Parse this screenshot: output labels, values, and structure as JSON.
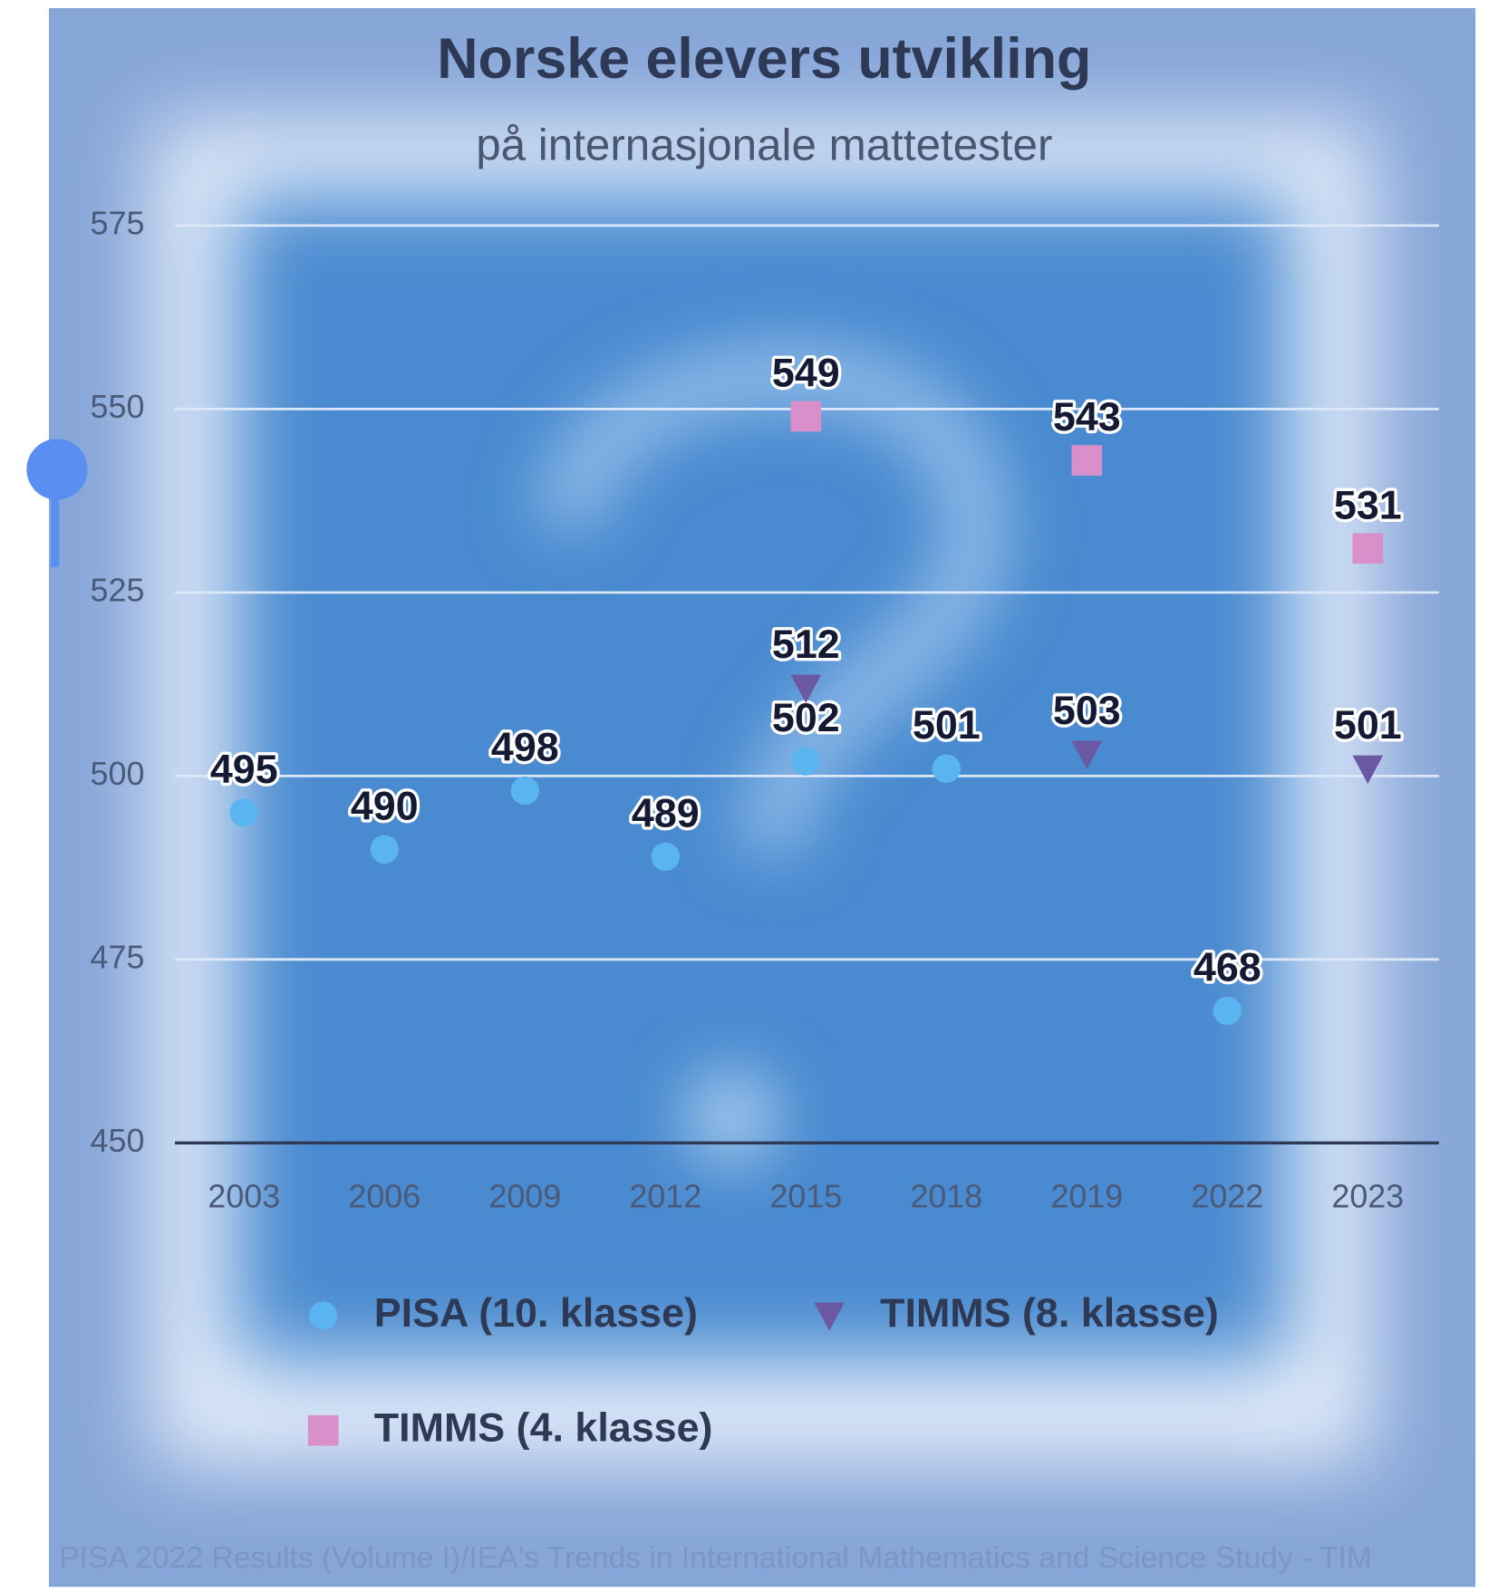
{
  "chart_data": {
    "type": "scatter",
    "title": "Norske elevers utvikling",
    "subtitle": "på internasjonale mattetester",
    "source": "PISA 2022 Results (Volume I)/IEA's Trends in International Mathematics and Science Study - TIM",
    "categories": [
      "2003",
      "2006",
      "2009",
      "2012",
      "2015",
      "2018",
      "2019",
      "2022",
      "2023"
    ],
    "series": [
      {
        "name": "PISA (10. klasse)",
        "color": "#5ab4f0",
        "marker": "circle",
        "values": [
          495,
          490,
          498,
          489,
          502,
          501,
          null,
          468,
          null
        ]
      },
      {
        "name": "TIMMS (8. klasse)",
        "color": "#6a58a2",
        "marker": "triangle",
        "values": [
          null,
          null,
          null,
          null,
          512,
          null,
          503,
          null,
          501
        ]
      },
      {
        "name": "TIMMS (4. klasse)",
        "color": "#d98fc9",
        "marker": "square",
        "values": [
          null,
          null,
          null,
          null,
          549,
          null,
          543,
          null,
          531
        ]
      }
    ],
    "ylim": [
      450,
      575
    ],
    "yticks": [
      450,
      475,
      500,
      525,
      550,
      575
    ],
    "grid": true,
    "legend": "bottom"
  }
}
